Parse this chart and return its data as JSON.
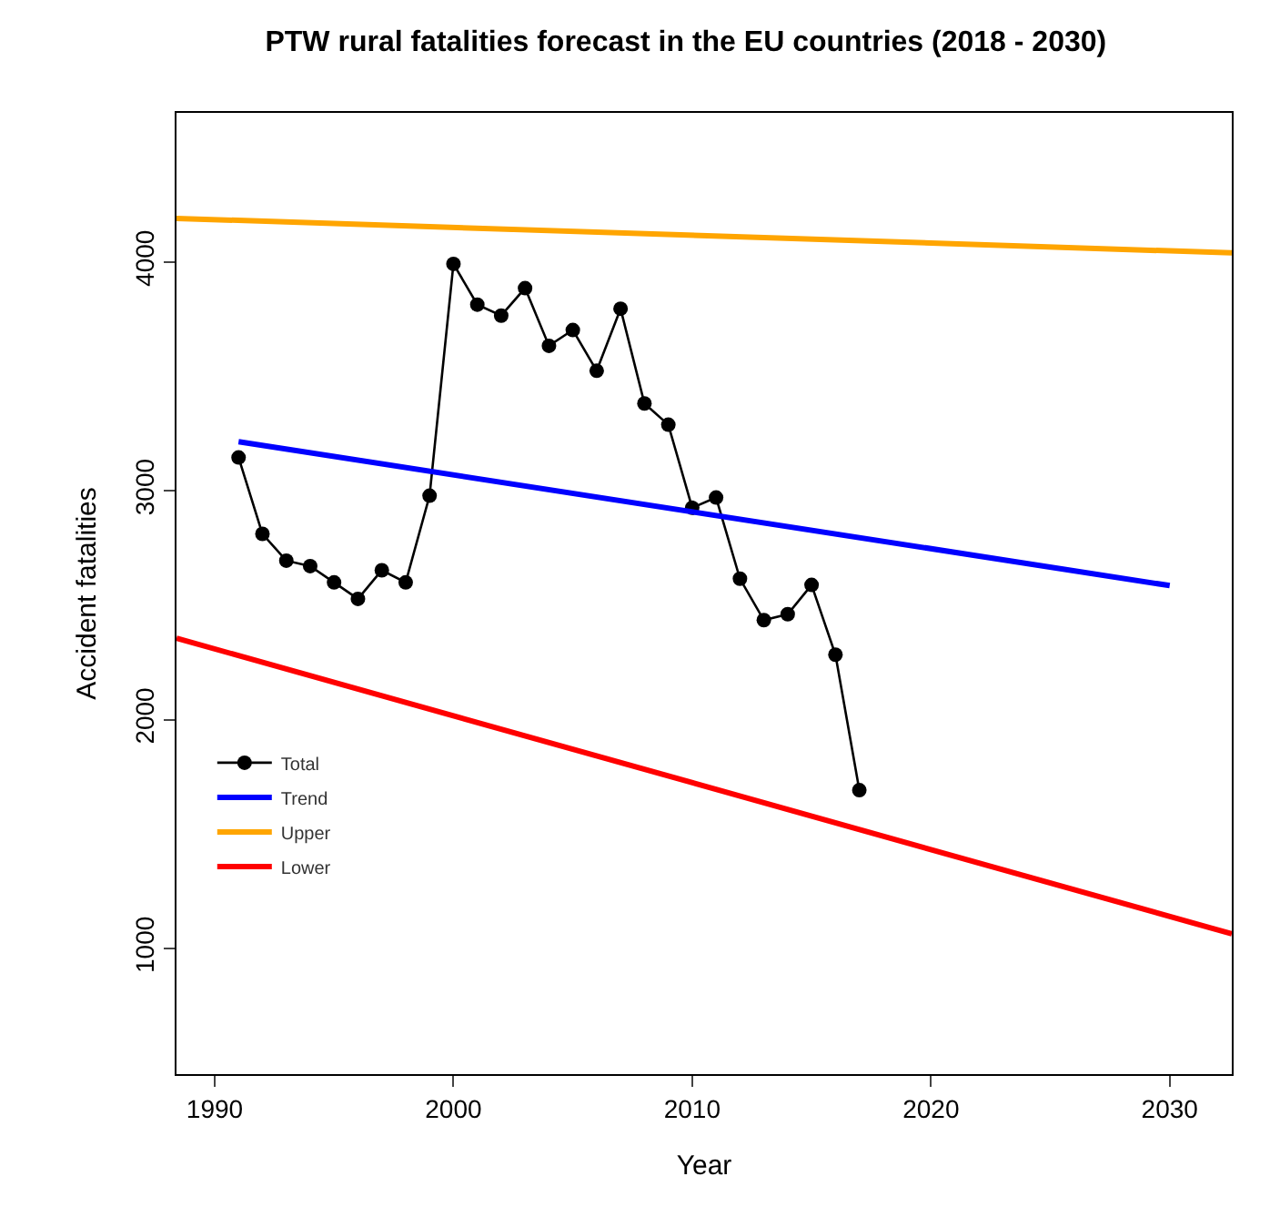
{
  "chart_data": {
    "type": "line",
    "title": "PTW rural fatalities forecast in the EU countries (2018 - 2030)",
    "xlabel": "Year",
    "ylabel": "Accident fatalities",
    "xlim": [
      1988.4,
      2032.6
    ],
    "ylim": [
      451,
      4652
    ],
    "xticks": [
      1990,
      2000,
      2010,
      2020,
      2030
    ],
    "yticks": [
      1000,
      2000,
      3000,
      4000
    ],
    "legend": "left",
    "series": [
      {
        "name": "Total",
        "color": "#000000",
        "marker": "circle",
        "x": [
          1991,
          1992,
          1993,
          1994,
          1995,
          1996,
          1997,
          1998,
          1999,
          2000,
          2001,
          2002,
          2003,
          2004,
          2005,
          2006,
          2007,
          2008,
          2009,
          2010,
          2011,
          2012,
          2013,
          2014,
          2015,
          2016,
          2017
        ],
        "values": [
          3146,
          2812,
          2695,
          2671,
          2600,
          2528,
          2653,
          2600,
          2979,
          3992,
          3814,
          3766,
          3886,
          3634,
          3703,
          3525,
          3796,
          3382,
          3289,
          2926,
          2971,
          2616,
          2435,
          2461,
          2589,
          2284,
          1692
        ]
      },
      {
        "name": "Trend",
        "color": "#0000ff",
        "marker": "none",
        "x": [
          1991,
          2030
        ],
        "values": [
          3215,
          2586
        ]
      },
      {
        "name": "Upper",
        "color": "#ffa500",
        "marker": "none",
        "x": [
          1988.4,
          2032.6
        ],
        "values": [
          4191,
          4040
        ]
      },
      {
        "name": "Lower",
        "color": "#ff0000",
        "marker": "none",
        "x": [
          1988.4,
          2032.6
        ],
        "values": [
          2356,
          1064
        ]
      }
    ]
  }
}
